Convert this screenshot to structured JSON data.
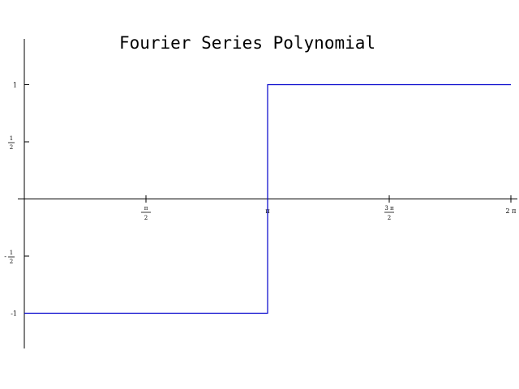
{
  "chart_data": {
    "type": "line",
    "title": "Fourier Series Polynomial",
    "xlabel": "",
    "ylabel": "",
    "xlim": [
      0,
      6.2832
    ],
    "ylim": [
      -1.3,
      1.4
    ],
    "grid": false,
    "legend": "none",
    "x_ticks": [
      {
        "value": 1.5708,
        "num": "π",
        "den": "2",
        "whole": ""
      },
      {
        "value": 3.1416,
        "num": "",
        "den": "",
        "whole": "π"
      },
      {
        "value": 4.7124,
        "num": "3 π",
        "den": "2",
        "whole": ""
      },
      {
        "value": 6.2832,
        "num": "",
        "den": "",
        "whole": "2 π"
      }
    ],
    "y_ticks": [
      {
        "value": 1,
        "sign": "",
        "num": "",
        "den": "",
        "whole": "1"
      },
      {
        "value": 0.5,
        "sign": "",
        "num": "1",
        "den": "2",
        "whole": ""
      },
      {
        "value": -0.5,
        "sign": "-",
        "num": "1",
        "den": "2",
        "whole": ""
      },
      {
        "value": -1,
        "sign": "",
        "num": "",
        "den": "",
        "whole": "-1"
      }
    ],
    "series": [
      {
        "color": "#0000cc",
        "x": [
          0,
          3.1416,
          3.1416,
          6.2832
        ],
        "y": [
          -1,
          -1,
          1,
          1
        ]
      }
    ]
  }
}
